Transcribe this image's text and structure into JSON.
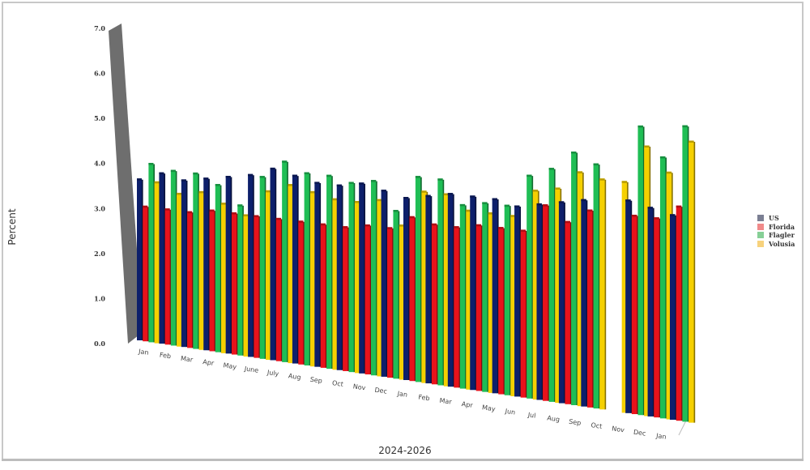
{
  "chart_data": {
    "type": "bar",
    "title": "",
    "xlabel": "2024-2026",
    "ylabel": "Percent",
    "ylim": [
      0,
      7
    ],
    "yticks": [
      "0.0",
      "1.0",
      "2.0",
      "3.0",
      "4.0",
      "5.0",
      "6.0",
      "7.0"
    ],
    "grid": false,
    "legend_position": "right",
    "style": "3d-perspective",
    "categories": [
      "Jan",
      "Feb",
      "Mar",
      "Apr",
      "May",
      "June",
      "July",
      "Aug",
      "Sep",
      "Oct",
      "Nov",
      "Dec",
      "Jan",
      "Feb",
      "Mar",
      "Apr",
      "May",
      "Jun",
      "Jul",
      "Aug",
      "Sep",
      "Oct",
      "Nov",
      "Dec",
      "Jan"
    ],
    "series": [
      {
        "name": "US",
        "color": "#0d1f6b",
        "values": [
          3.7,
          3.9,
          3.8,
          3.9,
          4.0,
          4.1,
          4.3,
          4.2,
          4.1,
          4.1,
          4.2,
          4.1,
          4.0,
          4.1,
          4.2,
          4.2,
          4.2,
          4.1,
          4.2,
          4.3,
          4.4,
          null,
          4.5,
          4.4,
          4.3
        ]
      },
      {
        "name": "Florida",
        "color": "#e8121b",
        "values": [
          3.1,
          3.1,
          3.1,
          3.2,
          3.2,
          3.2,
          3.2,
          3.2,
          3.2,
          3.2,
          3.3,
          3.3,
          3.6,
          3.5,
          3.5,
          3.6,
          3.6,
          3.6,
          4.2,
          3.9,
          4.2,
          null,
          4.2,
          4.2,
          4.5
        ]
      },
      {
        "name": "Flagler",
        "color": "#1fbe55",
        "values": [
          4.1,
          4.0,
          4.0,
          3.8,
          3.4,
          4.1,
          4.5,
          4.3,
          4.3,
          4.2,
          4.3,
          3.7,
          4.5,
          4.5,
          4.0,
          4.1,
          4.1,
          4.8,
          5.0,
          5.4,
          5.2,
          null,
          6.1,
          5.5,
          6.2
        ]
      },
      {
        "name": "Volusia",
        "color": "#f5d000",
        "values": [
          3.7,
          3.5,
          3.6,
          3.4,
          3.2,
          3.8,
          4.0,
          3.9,
          3.8,
          3.8,
          3.9,
          3.4,
          4.2,
          4.2,
          3.9,
          3.9,
          3.9,
          4.5,
          4.6,
          5.0,
          4.9,
          4.9,
          5.7,
          5.2,
          5.9
        ]
      }
    ]
  },
  "legend": {
    "items": [
      {
        "label": "US",
        "swatch": "#7b7f93"
      },
      {
        "label": "Florida",
        "swatch": "#f08a8a"
      },
      {
        "label": "Flagler",
        "swatch": "#86cf96"
      },
      {
        "label": "Volusia",
        "swatch": "#f7d27d"
      }
    ]
  },
  "axes": {
    "x_title": "2024-2026",
    "y_title": "Percent"
  }
}
